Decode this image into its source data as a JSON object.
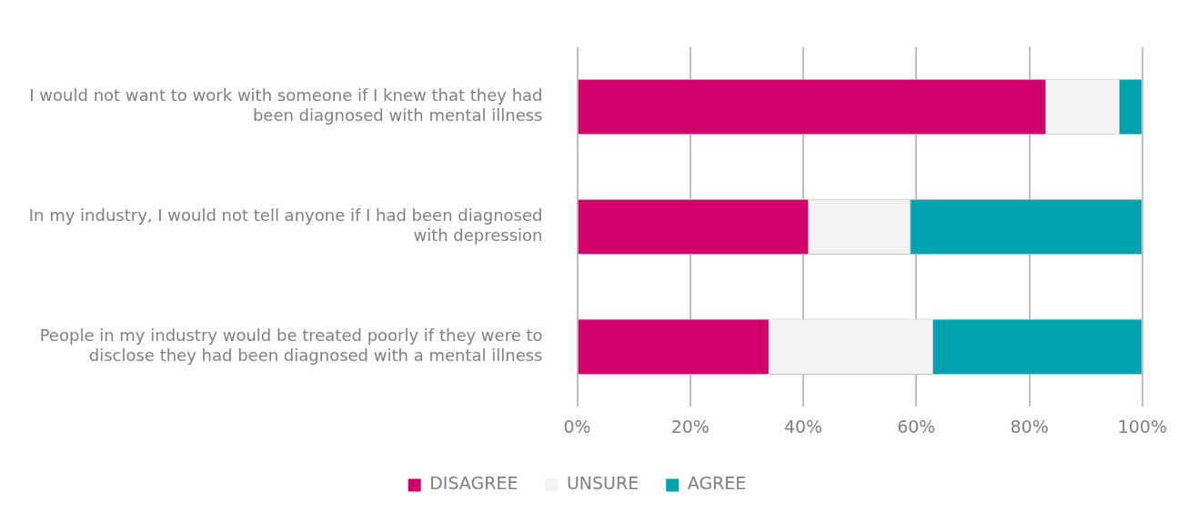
{
  "chart_data": {
    "type": "bar",
    "orientation": "horizontal",
    "stacked": true,
    "categories": [
      "I would not want to work with someone if I knew that they had been diagnosed with mental illness",
      "In my industry, I would not tell anyone if I had been diagnosed with depression",
      "People in my industry would be treated poorly if they were to disclose they had been diagnosed with a mental illness"
    ],
    "series": [
      {
        "name": "DISAGREE",
        "color": "#d1006b",
        "values": [
          83,
          41,
          34
        ]
      },
      {
        "name": "UNSURE",
        "color": "#f2f2f2",
        "values": [
          13,
          18,
          29
        ]
      },
      {
        "name": "AGREE",
        "color": "#00a3ad",
        "values": [
          4,
          41,
          37
        ]
      }
    ],
    "xlim": [
      0,
      100
    ],
    "xticks": [
      {
        "value": 0,
        "label": "0%"
      },
      {
        "value": 20,
        "label": "20%"
      },
      {
        "value": 40,
        "label": "40%"
      },
      {
        "value": 60,
        "label": "60%"
      },
      {
        "value": 80,
        "label": "80%"
      },
      {
        "value": 100,
        "label": "100%"
      }
    ],
    "grid": "x",
    "legend": "bottom"
  }
}
